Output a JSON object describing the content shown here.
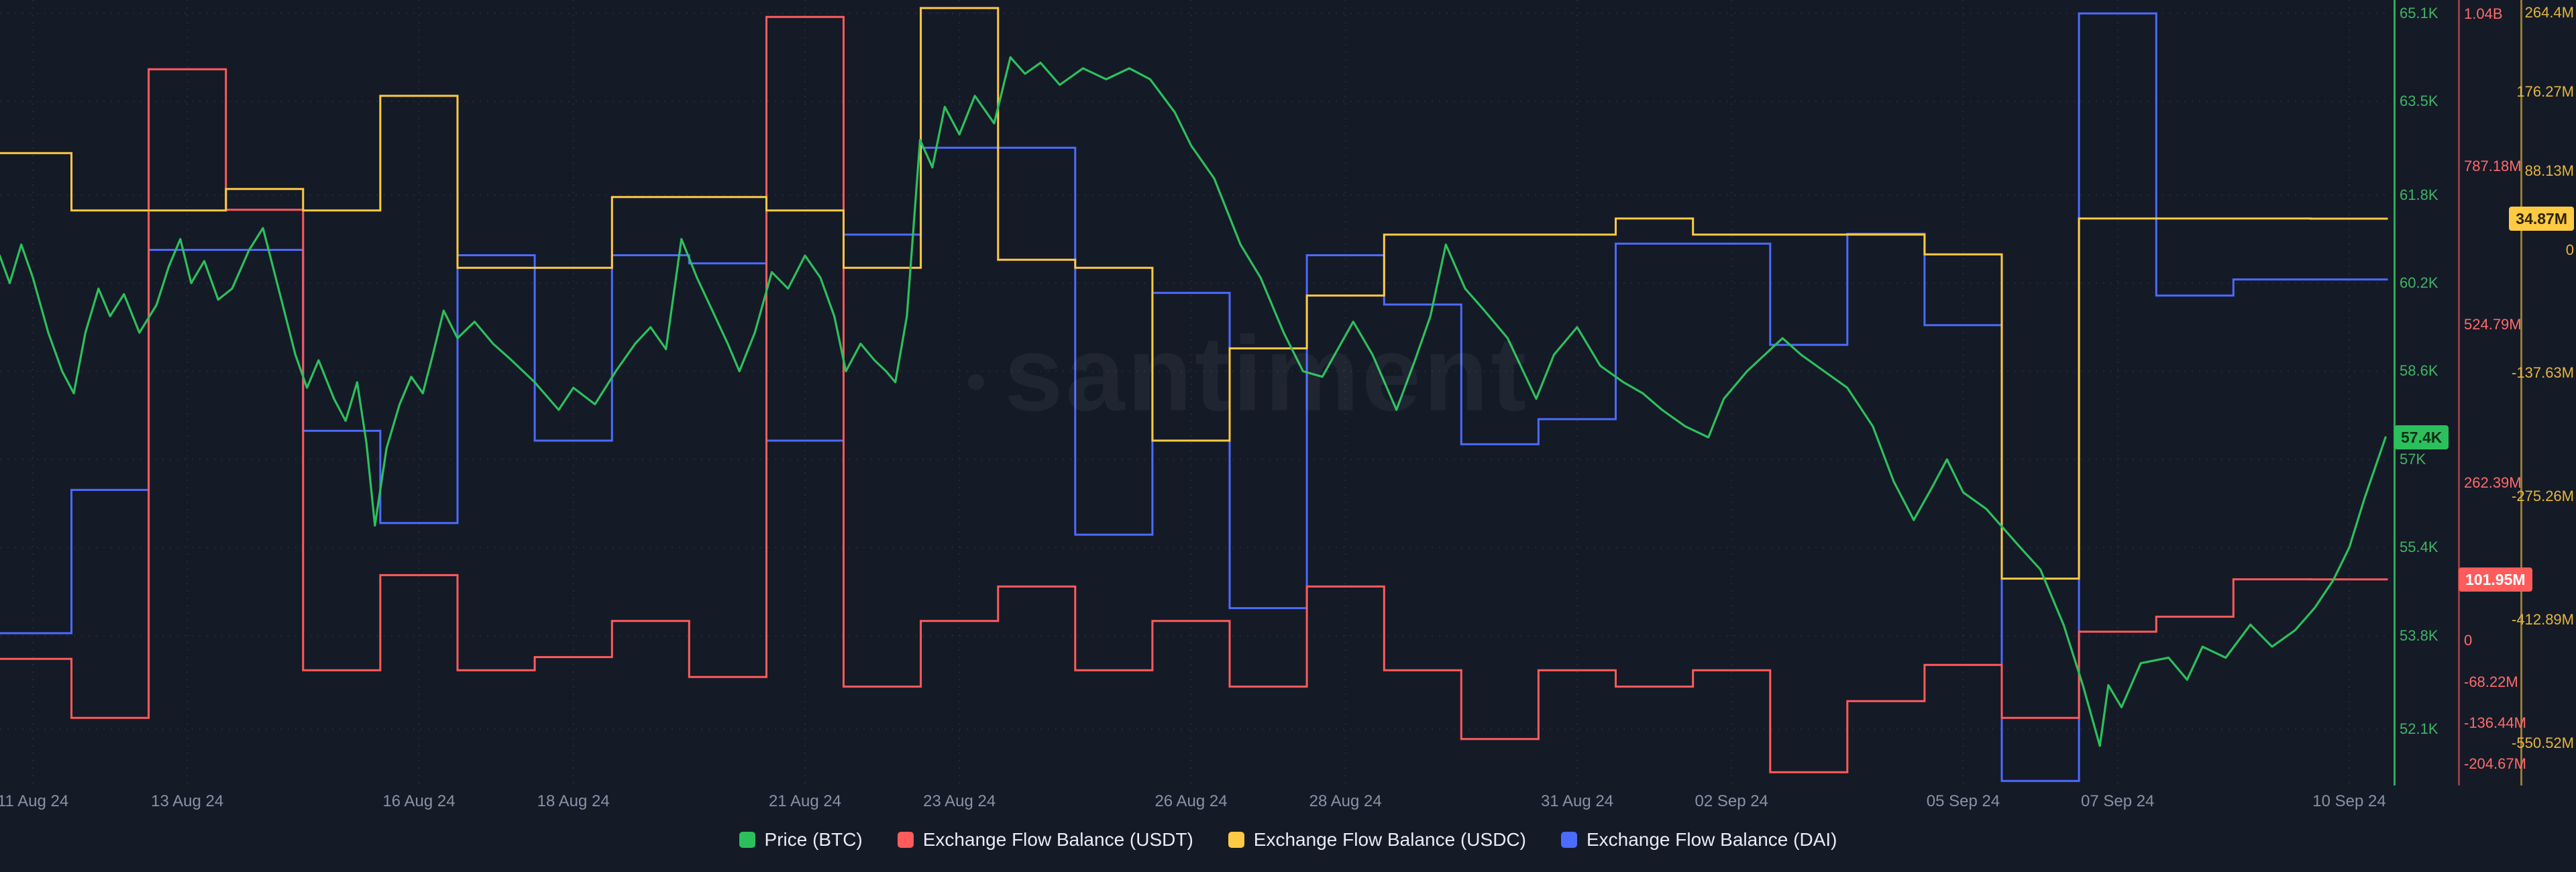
{
  "watermark": "santiment",
  "legend": [
    {
      "label": "Price (BTC)",
      "color": "#2cc05c"
    },
    {
      "label": "Exchange Flow Balance (USDT)",
      "color": "#ff5b5b"
    },
    {
      "label": "Exchange Flow Balance (USDC)",
      "color": "#ffca43"
    },
    {
      "label": "Exchange Flow Balance (DAI)",
      "color": "#4c6bff"
    }
  ],
  "chart_data": {
    "type": "line",
    "legend_position": "bottom",
    "grid": "dotted",
    "x_axis": {
      "ticks": [
        {
          "label": "11 Aug 24",
          "day": 0
        },
        {
          "label": "13 Aug 24",
          "day": 2
        },
        {
          "label": "16 Aug 24",
          "day": 5
        },
        {
          "label": "18 Aug 24",
          "day": 7
        },
        {
          "label": "21 Aug 24",
          "day": 10
        },
        {
          "label": "23 Aug 24",
          "day": 12
        },
        {
          "label": "26 Aug 24",
          "day": 15
        },
        {
          "label": "28 Aug 24",
          "day": 17
        },
        {
          "label": "31 Aug 24",
          "day": 20
        },
        {
          "label": "02 Sep 24",
          "day": 22
        },
        {
          "label": "05 Sep 24",
          "day": 25
        },
        {
          "label": "07 Sep 24",
          "day": 27
        },
        {
          "label": "10 Sep 24",
          "day": 30
        }
      ]
    },
    "axes": {
      "price": {
        "color": "#2cc05c",
        "label_color": "#3fb564",
        "unit": "USD (thousands)",
        "ticks": [
          "65.1K",
          "63.5K",
          "61.8K",
          "60.2K",
          "58.6K",
          "57K",
          "55.4K",
          "53.8K",
          "52.1K"
        ],
        "tick_values": [
          65.1,
          63.5,
          61.8,
          60.2,
          58.6,
          57,
          55.4,
          53.8,
          52.1
        ],
        "range_top": 65.34,
        "range_bottom": 51.08,
        "badge": {
          "label": "57.4K",
          "value": 57.4
        },
        "badge_text_color": "#0c2f1a"
      },
      "usdt": {
        "color": "#ff5b5b",
        "label_color": "#ff6b6b",
        "unit": "USD (millions)",
        "ticks": [
          "1.04B",
          "787.18M",
          "524.79M",
          "262.39M",
          "0",
          "-68.22M",
          "-136.44M",
          "-204.67M"
        ],
        "tick_values": [
          1040,
          787.18,
          524.79,
          262.39,
          0,
          -68.22,
          -136.44,
          -204.67
        ],
        "range_top": 1063,
        "range_bottom": -240,
        "badge": {
          "label": "101.95M",
          "value": 101.95
        },
        "badge_text_color": "#ffffff"
      },
      "usdc": {
        "color": "#ffca43",
        "label_color": "#e4b63e",
        "unit": "USD (millions)",
        "ticks": [
          "264.4M",
          "176.27M",
          "88.13M",
          "0",
          "-137.63M",
          "-275.26M",
          "-412.89M",
          "-550.52M"
        ],
        "tick_values": [
          264.4,
          176.27,
          88.13,
          0,
          -137.63,
          -275.26,
          -412.89,
          -550.52
        ],
        "range_top": 279,
        "range_bottom": -598,
        "badge": {
          "label": "34.87M",
          "value": 34.87
        },
        "badge_text_color": "#2b2206"
      },
      "dai": {
        "color": "#4c6bff",
        "unit": "USD (millions)",
        "axis_hidden": true,
        "range_top": 279,
        "range_bottom": -598
      }
    },
    "series": [
      {
        "id": "dai-flow",
        "name": "Exchange Flow Balance (DAI)",
        "type": "step",
        "color": "#4c6bff",
        "axis": "dai",
        "dates": [
          "11 Aug 24",
          "12 Aug 24",
          "13 Aug 24",
          "14 Aug 24",
          "15 Aug 24",
          "16 Aug 24",
          "17 Aug 24",
          "18 Aug 24",
          "19 Aug 24",
          "20 Aug 24",
          "21 Aug 24",
          "22 Aug 24",
          "23 Aug 24",
          "24 Aug 24",
          "25 Aug 24",
          "26 Aug 24",
          "27 Aug 24",
          "28 Aug 24",
          "29 Aug 24",
          "30 Aug 24",
          "31 Aug 24",
          "01 Sep 24",
          "02 Sep 24",
          "03 Sep 24",
          "04 Sep 24",
          "05 Sep 24",
          "06 Sep 24",
          "07 Sep 24",
          "08 Sep 24",
          "09 Sep 24",
          "10 Sep 24"
        ],
        "values": [
          -428,
          -268,
          0,
          0,
          -202,
          -305,
          -6,
          -213,
          -6,
          -15,
          -213,
          17,
          114,
          114,
          -318,
          -48,
          -400,
          -6,
          -61,
          -217,
          -189,
          7,
          7,
          -106,
          18,
          -84,
          -593,
          264,
          -51,
          -33,
          -33
        ]
      },
      {
        "id": "usdt-flow",
        "name": "Exchange Flow Balance (USDT)",
        "type": "step",
        "color": "#ff5b5b",
        "axis": "usdt",
        "dates": [
          "11 Aug 24",
          "12 Aug 24",
          "13 Aug 24",
          "14 Aug 24",
          "15 Aug 24",
          "16 Aug 24",
          "17 Aug 24",
          "18 Aug 24",
          "19 Aug 24",
          "20 Aug 24",
          "21 Aug 24",
          "22 Aug 24",
          "23 Aug 24",
          "24 Aug 24",
          "25 Aug 24",
          "26 Aug 24",
          "27 Aug 24",
          "28 Aug 24",
          "29 Aug 24",
          "30 Aug 24",
          "31 Aug 24",
          "01 Sep 24",
          "02 Sep 24",
          "03 Sep 24",
          "04 Sep 24",
          "05 Sep 24",
          "06 Sep 24",
          "07 Sep 24",
          "08 Sep 24",
          "09 Sep 24",
          "10 Sep 24"
        ],
        "values": [
          -30,
          -128,
          948,
          715,
          -49,
          109,
          -49,
          -27,
          33,
          -60,
          1035,
          -76,
          33,
          90,
          -49,
          33,
          -76,
          90,
          -49,
          -163,
          -49,
          -76,
          -49,
          -218,
          -100,
          -40,
          -128,
          15,
          40,
          102,
          101.95
        ]
      },
      {
        "id": "usdc-flow",
        "name": "Exchange Flow Balance (USDC)",
        "type": "step",
        "color": "#ffca43",
        "axis": "usdc",
        "dates": [
          "11 Aug 24",
          "12 Aug 24",
          "13 Aug 24",
          "14 Aug 24",
          "15 Aug 24",
          "16 Aug 24",
          "17 Aug 24",
          "18 Aug 24",
          "19 Aug 24",
          "20 Aug 24",
          "21 Aug 24",
          "22 Aug 24",
          "23 Aug 24",
          "24 Aug 24",
          "25 Aug 24",
          "26 Aug 24",
          "27 Aug 24",
          "28 Aug 24",
          "29 Aug 24",
          "30 Aug 24",
          "31 Aug 24",
          "01 Sep 24",
          "02 Sep 24",
          "03 Sep 24",
          "04 Sep 24",
          "05 Sep 24",
          "06 Sep 24",
          "07 Sep 24",
          "08 Sep 24",
          "09 Sep 24",
          "10 Sep 24"
        ],
        "values": [
          108,
          44,
          44,
          68,
          44,
          172,
          -20,
          -20,
          59,
          59,
          44,
          -20,
          270,
          -11,
          -20,
          -213,
          -110,
          -51,
          17,
          17,
          17,
          35,
          17,
          17,
          17,
          -5,
          -367,
          35,
          35,
          35,
          34.87
        ]
      },
      {
        "id": "price-btc",
        "name": "Price (BTC)",
        "type": "line",
        "color": "#2cc05c",
        "axis": "price",
        "points": [
          [
            -0.43,
            60.7
          ],
          [
            -0.3,
            60.2
          ],
          [
            -0.15,
            60.9
          ],
          [
            0,
            60.3
          ],
          [
            0.2,
            59.3
          ],
          [
            0.38,
            58.6
          ],
          [
            0.53,
            58.2
          ],
          [
            0.68,
            59.3
          ],
          [
            0.85,
            60.1
          ],
          [
            1,
            59.6
          ],
          [
            1.18,
            60
          ],
          [
            1.38,
            59.3
          ],
          [
            1.6,
            59.8
          ],
          [
            1.76,
            60.5
          ],
          [
            1.91,
            61
          ],
          [
            2.05,
            60.2
          ],
          [
            2.22,
            60.6
          ],
          [
            2.4,
            59.9
          ],
          [
            2.58,
            60.1
          ],
          [
            2.8,
            60.8
          ],
          [
            2.98,
            61.2
          ],
          [
            3.2,
            60
          ],
          [
            3.4,
            58.9
          ],
          [
            3.55,
            58.3
          ],
          [
            3.7,
            58.8
          ],
          [
            3.9,
            58.1
          ],
          [
            4.05,
            57.7
          ],
          [
            4.2,
            58.4
          ],
          [
            4.32,
            57.3
          ],
          [
            4.43,
            55.8
          ],
          [
            4.58,
            57.2
          ],
          [
            4.75,
            58
          ],
          [
            4.9,
            58.5
          ],
          [
            5.05,
            58.2
          ],
          [
            5.18,
            58.9
          ],
          [
            5.32,
            59.7
          ],
          [
            5.5,
            59.2
          ],
          [
            5.72,
            59.5
          ],
          [
            5.96,
            59.1
          ],
          [
            6.2,
            58.8
          ],
          [
            6.5,
            58.4
          ],
          [
            6.81,
            57.9
          ],
          [
            7,
            58.3
          ],
          [
            7.28,
            58
          ],
          [
            7.55,
            58.6
          ],
          [
            7.8,
            59.1
          ],
          [
            8,
            59.4
          ],
          [
            8.2,
            59
          ],
          [
            8.4,
            61
          ],
          [
            8.6,
            60.3
          ],
          [
            8.8,
            59.7
          ],
          [
            9,
            59.1
          ],
          [
            9.15,
            58.6
          ],
          [
            9.35,
            59.3
          ],
          [
            9.57,
            60.4
          ],
          [
            9.78,
            60.1
          ],
          [
            10,
            60.7
          ],
          [
            10.2,
            60.3
          ],
          [
            10.38,
            59.6
          ],
          [
            10.53,
            58.6
          ],
          [
            10.72,
            59.1
          ],
          [
            10.9,
            58.8
          ],
          [
            11.05,
            58.6
          ],
          [
            11.17,
            58.4
          ],
          [
            11.32,
            59.6
          ],
          [
            11.49,
            62.8
          ],
          [
            11.65,
            62.3
          ],
          [
            11.81,
            63.4
          ],
          [
            12,
            62.9
          ],
          [
            12.2,
            63.6
          ],
          [
            12.45,
            63.1
          ],
          [
            12.66,
            64.3
          ],
          [
            12.85,
            64
          ],
          [
            13.05,
            64.2
          ],
          [
            13.3,
            63.8
          ],
          [
            13.6,
            64.1
          ],
          [
            13.9,
            63.9
          ],
          [
            14.2,
            64.1
          ],
          [
            14.47,
            63.9
          ],
          [
            14.79,
            63.3
          ],
          [
            15,
            62.7
          ],
          [
            15.3,
            62.1
          ],
          [
            15.64,
            60.9
          ],
          [
            15.9,
            60.3
          ],
          [
            16.2,
            59.3
          ],
          [
            16.45,
            58.6
          ],
          [
            16.7,
            58.5
          ],
          [
            16.9,
            59
          ],
          [
            17.1,
            59.5
          ],
          [
            17.35,
            58.9
          ],
          [
            17.66,
            57.9
          ],
          [
            17.9,
            58.8
          ],
          [
            18.1,
            59.6
          ],
          [
            18.3,
            60.9
          ],
          [
            18.55,
            60.1
          ],
          [
            18.8,
            59.7
          ],
          [
            19.1,
            59.2
          ],
          [
            19.47,
            58.1
          ],
          [
            19.7,
            58.9
          ],
          [
            20,
            59.4
          ],
          [
            20.3,
            58.7
          ],
          [
            20.6,
            58.4
          ],
          [
            20.85,
            58.2
          ],
          [
            21.1,
            57.9
          ],
          [
            21.4,
            57.6
          ],
          [
            21.7,
            57.4
          ],
          [
            21.9,
            58.1
          ],
          [
            22.2,
            58.6
          ],
          [
            22.66,
            59.2
          ],
          [
            22.9,
            58.9
          ],
          [
            23.2,
            58.6
          ],
          [
            23.5,
            58.3
          ],
          [
            23.83,
            57.6
          ],
          [
            24.1,
            56.6
          ],
          [
            24.36,
            55.9
          ],
          [
            24.6,
            56.5
          ],
          [
            24.79,
            57
          ],
          [
            25,
            56.4
          ],
          [
            25.3,
            56.1
          ],
          [
            25.74,
            55.4
          ],
          [
            26,
            55
          ],
          [
            26.3,
            54
          ],
          [
            26.55,
            52.9
          ],
          [
            26.77,
            51.8
          ],
          [
            26.88,
            52.9
          ],
          [
            27.05,
            52.5
          ],
          [
            27.3,
            53.3
          ],
          [
            27.66,
            53.4
          ],
          [
            27.9,
            53
          ],
          [
            28.1,
            53.6
          ],
          [
            28.4,
            53.4
          ],
          [
            28.72,
            54
          ],
          [
            29,
            53.6
          ],
          [
            29.3,
            53.9
          ],
          [
            29.55,
            54.3
          ],
          [
            29.79,
            54.8
          ],
          [
            30,
            55.4
          ],
          [
            30.2,
            56.3
          ],
          [
            30.47,
            57.4
          ]
        ]
      }
    ]
  }
}
